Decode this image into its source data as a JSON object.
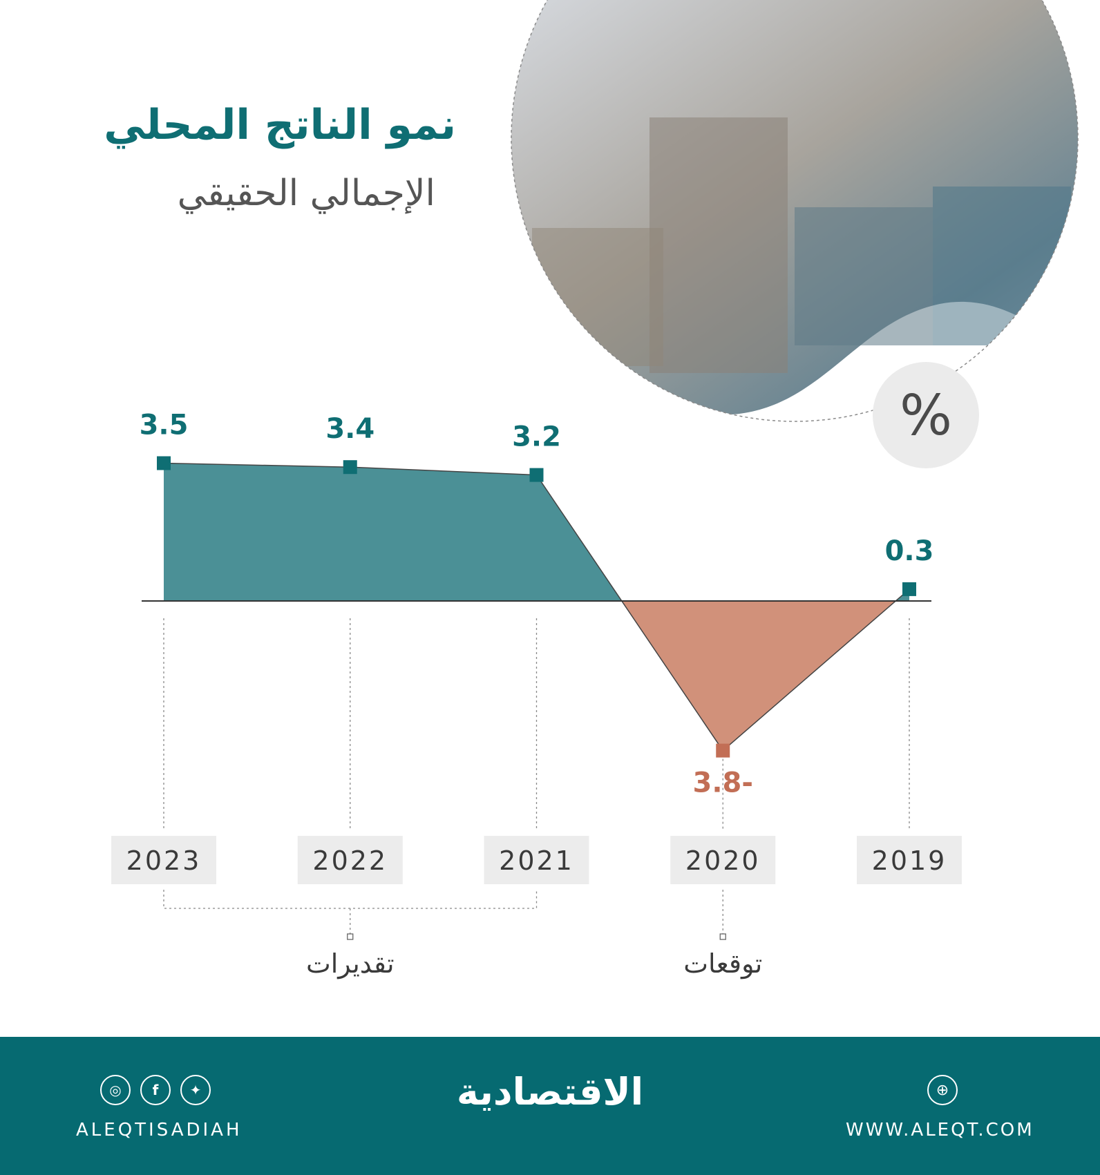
{
  "header": {
    "title_line1": "نمو الناتج المحلي",
    "title_line2": "الإجمالي الحقيقي"
  },
  "unit_badge": "%",
  "chart_data": {
    "type": "area",
    "title": "نمو الناتج المحلي الإجمالي الحقيقي",
    "ylabel": "%",
    "x_direction": "right-to-left",
    "categories": [
      "2019",
      "2020",
      "2021",
      "2022",
      "2023"
    ],
    "values": [
      0.3,
      -3.8,
      3.2,
      3.4,
      3.5
    ],
    "value_labels": [
      "0.3",
      "3.8-",
      "3.2",
      "3.4",
      "3.5"
    ],
    "ylim": [
      -3.8,
      3.5
    ],
    "colors": {
      "positive": "#4b9096",
      "negative": "#d1917a",
      "positive_text": "#0f6e73",
      "negative_text": "#c26e55"
    },
    "groups": [
      {
        "label": "توقعات",
        "categories": [
          "2020"
        ]
      },
      {
        "label": "تقديرات",
        "categories": [
          "2021",
          "2022",
          "2023"
        ]
      }
    ]
  },
  "chart_ticks": {
    "tick_bg": "#ececec",
    "tick_color": "#3a3a3a"
  },
  "footer": {
    "social_icons": [
      "instagram-icon",
      "facebook-icon",
      "twitter-icon"
    ],
    "social_handle": "ALEQTISADIAH",
    "logo_text": "الاقتصادية",
    "website_icon": "dribbble-icon",
    "website": "WWW.ALEQT.COM"
  }
}
